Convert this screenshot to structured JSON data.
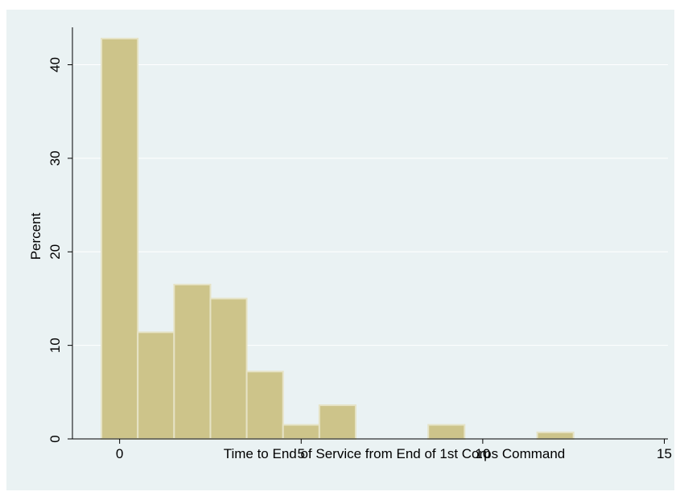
{
  "chart_data": {
    "type": "bar",
    "title": "",
    "xlabel": "Time to End of Service from End of 1st Corps Command",
    "ylabel": "Percent",
    "bin_width": 1,
    "bins": [
      {
        "x": 0,
        "value": 42.8
      },
      {
        "x": 1,
        "value": 11.4
      },
      {
        "x": 2,
        "value": 16.5
      },
      {
        "x": 3,
        "value": 15.0
      },
      {
        "x": 4,
        "value": 7.2
      },
      {
        "x": 5,
        "value": 1.5
      },
      {
        "x": 6,
        "value": 3.6
      },
      {
        "x": 9,
        "value": 1.5
      },
      {
        "x": 12,
        "value": 0.7
      }
    ],
    "xlim": [
      -1.3,
      15.1
    ],
    "ylim": [
      0,
      44
    ],
    "xticks": [
      0,
      5,
      10,
      15
    ],
    "yticks": [
      0,
      10,
      20,
      30,
      40
    ],
    "grid": true,
    "colors": {
      "background": "#eaf2f3",
      "bar_fill": "#cdc48a",
      "bar_stroke": "#e6e3c6",
      "grid": "#ffffff",
      "axis": "#000000"
    }
  }
}
